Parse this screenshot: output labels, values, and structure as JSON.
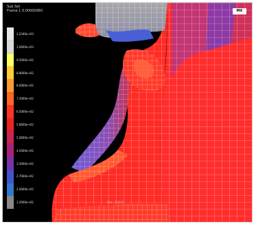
{
  "header": {
    "line1": "Sub   Set",
    "line2": "Frame   1  0.000000E0"
  },
  "badge": "MX",
  "bottom_label": "Max. 2.82e3",
  "legend": {
    "labels": [
      "1.2340e+03",
      "1.0000e+03",
      "9.5000e+02",
      "8.8000e+02",
      "8.0000e+02",
      "7.2000e+02",
      "6.5000e+02",
      "5.8000e+02",
      "5.0000e+02",
      "4.2000e+02",
      "3.5000e+02",
      "2.7000e+02",
      "2.0000e+02",
      "1.2000e+02"
    ],
    "colors": [
      "#e6e6e6",
      "#d9d9d9",
      "#ffff66",
      "#ffcc33",
      "#ff9933",
      "#ff6622",
      "#ff3322",
      "#ee2222",
      "#cc2255",
      "#aa2277",
      "#7733aa",
      "#4455cc",
      "#3377cc",
      "#888888"
    ]
  },
  "colors": {
    "background": "#000000",
    "hot": "#ff2a2a",
    "warm": "#ff5533",
    "cool": "#5a4fd0",
    "grey": "#9c9ca0",
    "mesh": "#ffd0c0"
  }
}
